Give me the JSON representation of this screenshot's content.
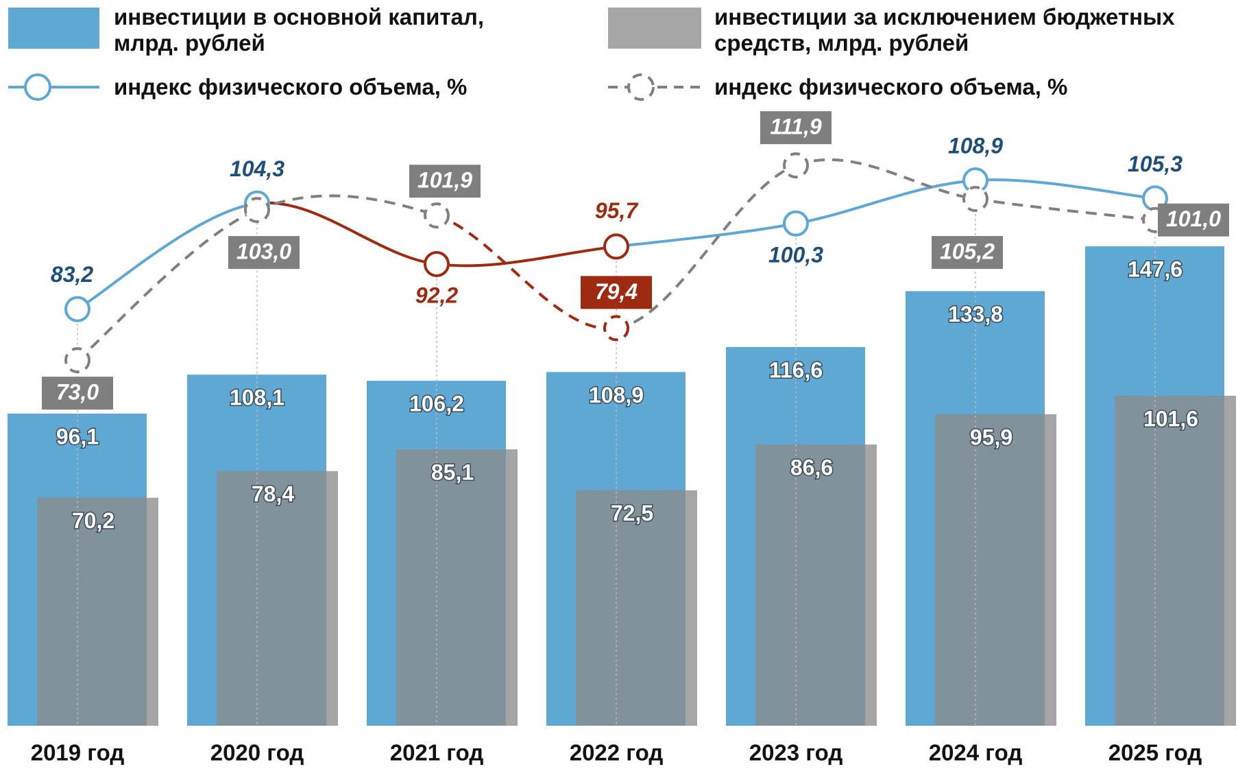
{
  "chart_data": {
    "type": "bar_line",
    "categories": [
      "2019 год",
      "2020 год",
      "2021 год",
      "2022 год",
      "2023 год",
      "2024 год",
      "2025 год"
    ],
    "ylim": [
      0,
      185
    ],
    "y2lim": [
      0,
      120
    ],
    "series": [
      {
        "name": "инвестиции в основной капитал, млрд. рублей",
        "type": "bar",
        "color": "#5fa8d3",
        "values": [
          96.1,
          108.1,
          106.2,
          108.9,
          116.6,
          133.8,
          147.6
        ],
        "value_labels": [
          "96,1",
          "108,1",
          "106,2",
          "108,9",
          "116,6",
          "133,8",
          "147,6"
        ]
      },
      {
        "name": "инвестиции за исключением бюджетных средств, млрд. рублей",
        "type": "bar",
        "color": "#8c8c8c",
        "values": [
          70.2,
          78.4,
          85.1,
          72.5,
          86.6,
          95.9,
          101.6
        ],
        "value_labels": [
          "70,2",
          "78,4",
          "85,1",
          "72,5",
          "86,6",
          "95,9",
          "101,6"
        ]
      },
      {
        "name": "индекс физического объема, %",
        "type": "line",
        "axis": "y2",
        "color": "#5fa8d3",
        "dashed": false,
        "highlight_color": "#9e2a12",
        "highlight_segments": [
          1,
          2
        ],
        "highlight_points": [
          2,
          3
        ],
        "values": [
          83.2,
          104.3,
          92.2,
          95.7,
          100.3,
          108.9,
          105.3
        ],
        "value_labels": [
          "83,2",
          "104,3",
          "92,2",
          "95,7",
          "100,3",
          "108,9",
          "105,3"
        ]
      },
      {
        "name": "индекс физического объема, %",
        "type": "line",
        "axis": "y2",
        "color": "#808080",
        "dashed": true,
        "highlight_color": "#9e2a12",
        "highlight_segments": [
          2
        ],
        "highlight_points": [
          3
        ],
        "values": [
          73.0,
          103.0,
          101.9,
          79.4,
          111.9,
          105.2,
          101.0
        ],
        "value_labels": [
          "73,0",
          "103,0",
          "101,9",
          "79,4",
          "111,9",
          "105,2",
          "101,0"
        ]
      }
    ]
  }
}
